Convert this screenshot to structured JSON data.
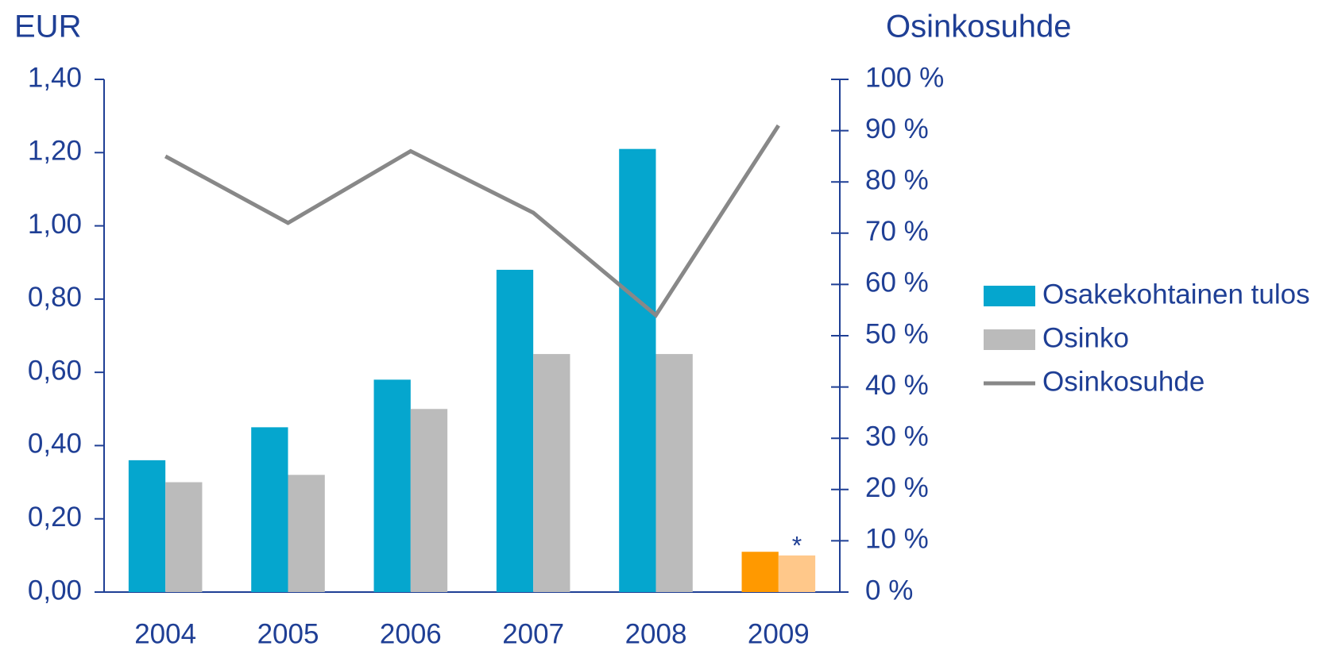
{
  "chart_data": {
    "type": "bar-line",
    "y_axis_label": "EUR",
    "y2_axis_label": "Osinkosuhde",
    "categories": [
      "2004",
      "2005",
      "2006",
      "2007",
      "2008",
      "2009"
    ],
    "series": [
      {
        "name": "Osakekohtainen tulos",
        "type": "bar",
        "color": "#05a6ce",
        "point_colors": [
          "#05a6ce",
          "#05a6ce",
          "#05a6ce",
          "#05a6ce",
          "#05a6ce",
          "#ff9900"
        ],
        "values": [
          0.36,
          0.45,
          0.58,
          0.88,
          1.21,
          0.11
        ]
      },
      {
        "name": "Osinko",
        "type": "bar",
        "color": "#bbbbbb",
        "point_colors": [
          "#bbbbbb",
          "#bbbbbb",
          "#bbbbbb",
          "#bbbbbb",
          "#bbbbbb",
          "#ffc88a"
        ],
        "values": [
          0.3,
          0.32,
          0.5,
          0.65,
          0.65,
          0.1
        ]
      },
      {
        "name": "Osinkosuhde",
        "type": "line",
        "axis": "y2",
        "color": "#888888",
        "values": [
          85,
          72,
          86,
          74,
          54,
          91
        ]
      }
    ],
    "annotations": [
      {
        "text": "*",
        "category": 5,
        "series": 1
      }
    ],
    "ylim": [
      0,
      1.4
    ],
    "yticks": [
      {
        "value": 0,
        "label": "0,00"
      },
      {
        "value": 0.2,
        "label": "0,20"
      },
      {
        "value": 0.4,
        "label": "0,40"
      },
      {
        "value": 0.6,
        "label": "0,60"
      },
      {
        "value": 0.8,
        "label": "0,80"
      },
      {
        "value": 1.0,
        "label": "1,00"
      },
      {
        "value": 1.2,
        "label": "1,20"
      },
      {
        "value": 1.4,
        "label": "1,40"
      }
    ],
    "y2lim": [
      0,
      100
    ],
    "y2ticks": [
      {
        "value": 0,
        "label": "0 %"
      },
      {
        "value": 10,
        "label": "10 %"
      },
      {
        "value": 20,
        "label": "20 %"
      },
      {
        "value": 30,
        "label": "30 %"
      },
      {
        "value": 40,
        "label": "40 %"
      },
      {
        "value": 50,
        "label": "50 %"
      },
      {
        "value": 60,
        "label": "60 %"
      },
      {
        "value": 70,
        "label": "70 %"
      },
      {
        "value": 80,
        "label": "80 %"
      },
      {
        "value": 90,
        "label": "90 %"
      },
      {
        "value": 100,
        "label": "100 %"
      }
    ],
    "grid": false,
    "legend": "right"
  }
}
